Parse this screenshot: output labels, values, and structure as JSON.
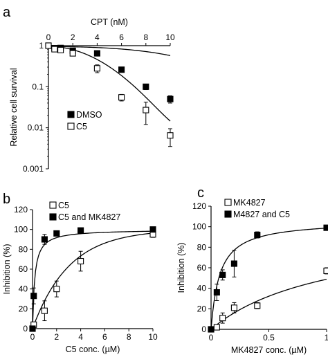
{
  "chart_data": [
    {
      "panel": "a",
      "type": "scatter",
      "xlabel": "CPT (nM)",
      "ylabel": "Relative cell survival",
      "x_axis_position": "top",
      "xlim": [
        0,
        10
      ],
      "ylim": [
        0.001,
        1
      ],
      "yscale": "log",
      "xticks": [
        "0",
        "2",
        "4",
        "6",
        "8",
        "10"
      ],
      "yticks": [
        "0.001",
        "0.01",
        "0.1",
        "1"
      ],
      "legend": "lower-left",
      "grid": false,
      "series": [
        {
          "name": "DMSO",
          "marker": "filled-square",
          "x": [
            0,
            0.5,
            1,
            2,
            4,
            6,
            8,
            10
          ],
          "y": [
            1.0,
            0.87,
            0.88,
            0.75,
            0.65,
            0.26,
            0.1,
            0.05
          ],
          "err": [
            0.03,
            0.03,
            0.03,
            0.04,
            0.04,
            0.03,
            0.015,
            0.01
          ]
        },
        {
          "name": "C5",
          "marker": "open-square",
          "x": [
            0,
            0.5,
            1,
            2,
            4,
            6,
            8,
            10
          ],
          "y": [
            1.0,
            0.82,
            0.78,
            0.65,
            0.28,
            0.055,
            0.027,
            0.0065
          ],
          "err": [
            0.03,
            0.06,
            0.05,
            0.05,
            0.06,
            0.01,
            0.015,
            0.003
          ]
        }
      ]
    },
    {
      "panel": "b",
      "type": "scatter",
      "xlabel": "C5 conc. (µM)",
      "ylabel": "Inhibition (%)",
      "xlim": [
        0,
        10
      ],
      "ylim": [
        0,
        120
      ],
      "xticks": [
        "0",
        "2",
        "4",
        "6",
        "8",
        "10"
      ],
      "yticks": [
        "0",
        "20",
        "40",
        "60",
        "80",
        "100",
        "120"
      ],
      "legend": "top-right",
      "grid": false,
      "series": [
        {
          "name": "C5",
          "marker": "open-square",
          "x": [
            0,
            0.1,
            1,
            2,
            4,
            10
          ],
          "y": [
            0,
            4,
            18,
            40,
            68,
            95
          ],
          "err": [
            0,
            2,
            10,
            8,
            10,
            3
          ]
        },
        {
          "name": "C5 and MK4827",
          "marker": "filled-square",
          "x": [
            0,
            0.1,
            1,
            2,
            4,
            10
          ],
          "y": [
            0,
            33,
            90,
            96,
            99,
            100
          ],
          "err": [
            0,
            8,
            5,
            2,
            2,
            2
          ]
        }
      ]
    },
    {
      "panel": "c",
      "type": "scatter",
      "xlabel": "MK4827 conc. (µM)",
      "ylabel": "Inhibition (%)",
      "xlim": [
        0,
        1
      ],
      "ylim": [
        0,
        120
      ],
      "xticks": [
        "0",
        "0.5",
        "1"
      ],
      "yticks": [
        "0",
        "20",
        "40",
        "60",
        "80",
        "100",
        "120"
      ],
      "legend": "top-left",
      "grid": false,
      "series": [
        {
          "name": "MK4827",
          "marker": "open-square",
          "x": [
            0,
            0.05,
            0.1,
            0.2,
            0.4,
            1
          ],
          "y": [
            0,
            2,
            11,
            21,
            23,
            57
          ],
          "err": [
            0,
            2,
            5,
            5,
            3,
            3
          ]
        },
        {
          "name": "M4827 and C5",
          "marker": "filled-square",
          "x": [
            0,
            0.05,
            0.1,
            0.2,
            0.4,
            1
          ],
          "y": [
            0,
            36,
            53,
            64,
            92,
            99
          ],
          "err": [
            0,
            8,
            5,
            13,
            3,
            2
          ]
        }
      ]
    }
  ]
}
